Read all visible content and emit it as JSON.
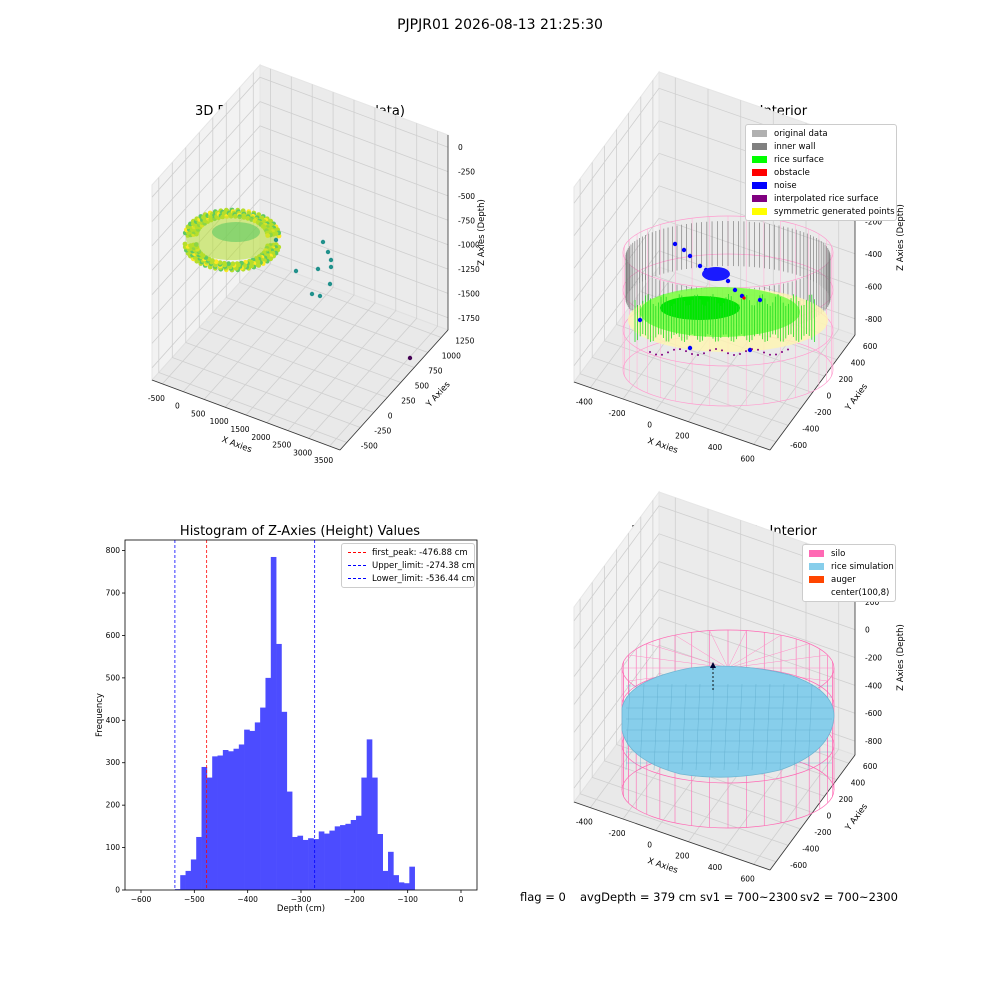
{
  "figure_title": "PJPJR01 2026-08-13 21:25:30",
  "footer": {
    "flag": "flag = 0",
    "avg": "avgDepth = 379 cm",
    "sv1": "sv1 = 700~2300",
    "sv2": "sv2 = 700~2300"
  },
  "chart_data": [
    {
      "type": "scatter",
      "title": "3D Plot of Silo Interior(row data)",
      "xlabel": "X Axies",
      "ylabel": "Y Axies",
      "zlabel": "Z Axies (Depth)",
      "x_ticks": [
        "-500",
        "0",
        "500",
        "1000",
        "1500",
        "2000",
        "2500",
        "3000",
        "3500"
      ],
      "y_ticks": [
        "-500",
        "-250",
        "0",
        "250",
        "500",
        "750",
        "1000",
        "1250"
      ],
      "z_ticks": [
        "0",
        "-250",
        "-500",
        "-750",
        "-1000",
        "-1250",
        "-1500",
        "-1750"
      ],
      "colormap": [
        "#440154",
        "#21918c",
        "#5ec962",
        "#fde725"
      ],
      "outlier_points": [
        {
          "x": 1200,
          "y": 1100,
          "z": -300
        },
        {
          "x": 1450,
          "y": 900,
          "z": -350
        },
        {
          "x": 1500,
          "y": 850,
          "z": -600
        },
        {
          "x": 1550,
          "y": 700,
          "z": -900
        },
        {
          "x": 1600,
          "y": 650,
          "z": -1000
        },
        {
          "x": 1620,
          "y": 500,
          "z": -800
        },
        {
          "x": 3200,
          "y": 1300,
          "z": -500
        }
      ]
    },
    {
      "type": "scatter",
      "title": "3D classify of Silo Interior",
      "xlabel": "X Axies",
      "ylabel": "Y Axies",
      "zlabel": "Z Axies (Depth)",
      "x_ticks": [
        "-400",
        "-200",
        "0",
        "200",
        "400",
        "600"
      ],
      "y_ticks": [
        "-600",
        "-400",
        "-200",
        "0",
        "200",
        "400",
        "600"
      ],
      "z_ticks": [
        "200",
        "0",
        "-200",
        "-400",
        "-600",
        "-800"
      ],
      "legend": [
        {
          "label": "original data",
          "color": "#b0b0b0"
        },
        {
          "label": "inner wall",
          "color": "#808080"
        },
        {
          "label": "rice surface",
          "color": "#00ff00"
        },
        {
          "label": "obstacle",
          "color": "#ff0000"
        },
        {
          "label": "noise",
          "color": "#0000ff"
        },
        {
          "label": "interpolated rice surface",
          "color": "#800080"
        },
        {
          "label": "symmetric generated points",
          "color": "#ffff00"
        }
      ]
    },
    {
      "type": "bar",
      "title": "Histogram of Z-Axies (Height) Values",
      "xlabel": "Depth (cm)",
      "ylabel": "Frequency",
      "xlim": [
        -630,
        30
      ],
      "ylim": [
        0,
        825
      ],
      "x_ticks": [
        -600,
        -500,
        -400,
        -300,
        -200,
        -100,
        0
      ],
      "y_ticks": [
        0,
        100,
        200,
        300,
        400,
        500,
        600,
        700,
        800
      ],
      "bin_start": -536.44,
      "bin_width": 9.99,
      "values": [
        2,
        35,
        45,
        72,
        125,
        290,
        265,
        315,
        317,
        330,
        327,
        333,
        343,
        378,
        375,
        395,
        430,
        500,
        785,
        580,
        420,
        232,
        125,
        128,
        118,
        122,
        120,
        138,
        133,
        140,
        150,
        153,
        156,
        165,
        175,
        265,
        355,
        265,
        132,
        45,
        90,
        35,
        18,
        16,
        55
      ],
      "bar_color": "#4c4cff",
      "vlines": [
        {
          "x": -476.88,
          "color": "#ff0000",
          "label": "first_peak: -476.88 cm"
        },
        {
          "x": -274.38,
          "color": "#0000ff",
          "label": "Upper_limit: -274.38 cm"
        },
        {
          "x": -536.44,
          "color": "#0000ff",
          "label": "Lower_limit: -536.44 cm"
        }
      ],
      "legend_position": "top-right"
    },
    {
      "type": "scatter",
      "title": "3D simulation of Silo Interior",
      "xlabel": "X Axies",
      "ylabel": "Y Axies",
      "zlabel": "Z Axies (Depth)",
      "x_ticks": [
        "-400",
        "-200",
        "0",
        "200",
        "400",
        "600"
      ],
      "y_ticks": [
        "-600",
        "-400",
        "-200",
        "0",
        "200",
        "400",
        "600"
      ],
      "z_ticks": [
        "400",
        "200",
        "0",
        "-200",
        "-400",
        "-600",
        "-800"
      ],
      "legend": [
        {
          "label": "silo",
          "color": "#ff69b4"
        },
        {
          "label": "rice simulation",
          "color": "#87ceeb"
        },
        {
          "label": "auger",
          "color": "#ff4500"
        },
        {
          "label": "center(100,8)",
          "color": "#ffffff"
        }
      ]
    }
  ]
}
